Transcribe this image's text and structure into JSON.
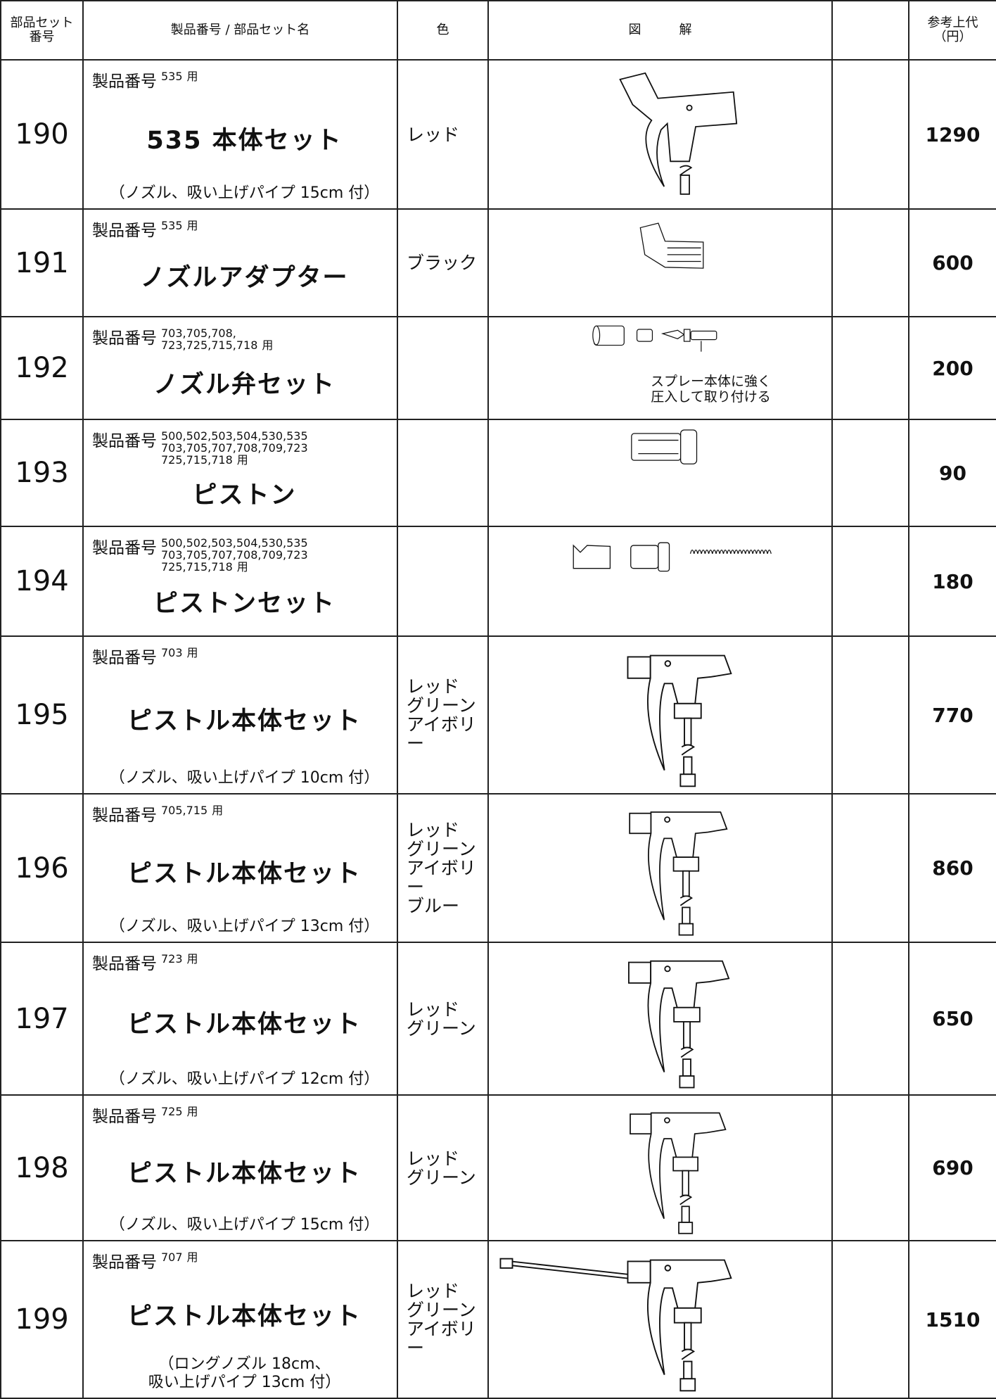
{
  "header": {
    "cells": [
      [
        "部品セット",
        "番号"
      ],
      [
        "製品番号 / 部品セット名"
      ],
      [
        "色"
      ],
      [
        "図　　　解"
      ],
      [],
      [
        "参考上代",
        "（円）"
      ]
    ]
  },
  "product_label": "製品番号",
  "suffix": "用",
  "rows": [
    {
      "number": "190",
      "models": [
        "535"
      ],
      "name": "535 本体セット",
      "note": [
        "（ノズル、吸い上げパイプ 15cm 付）"
      ],
      "colors": [
        "レッド"
      ],
      "price": 1290
    },
    {
      "number": "191",
      "models": [
        "535"
      ],
      "name": "ノズルアダプター",
      "colors": [
        "ブラック"
      ],
      "price": 600
    },
    {
      "number": "192",
      "models": [
        "703,705,708,",
        "723,725,715,718"
      ],
      "name": "ノズル弁セット",
      "diagram_note": [
        "スプレー本体に強く",
        "圧入して取り付ける"
      ],
      "price": 200
    },
    {
      "number": "193",
      "models": [
        "500,502,503,504,530,535",
        "703,705,707,708,709,723",
        "725,715,718"
      ],
      "name": "ピストン",
      "price": 90
    },
    {
      "number": "194",
      "models": [
        "500,502,503,504,530,535",
        "703,705,707,708,709,723",
        "725,715,718"
      ],
      "name": "ピストンセット",
      "price": 180
    },
    {
      "number": "195",
      "models": [
        "703"
      ],
      "name": "ピストル本体セット",
      "note": [
        "（ノズル、吸い上げパイプ 10cm 付）"
      ],
      "colors": [
        "レッド",
        "グリーン",
        "アイボリー"
      ],
      "price": 770
    },
    {
      "number": "196",
      "models": [
        "705,715"
      ],
      "name": "ピストル本体セット",
      "note": [
        "（ノズル、吸い上げパイプ 13cm 付）"
      ],
      "colors": [
        "レッド",
        "グリーン",
        "アイボリー",
        "ブルー"
      ],
      "price": 860
    },
    {
      "number": "197",
      "models": [
        "723"
      ],
      "name": "ピストル本体セット",
      "note": [
        "（ノズル、吸い上げパイプ 12cm 付）"
      ],
      "colors": [
        "レッド",
        "グリーン"
      ],
      "price": 650
    },
    {
      "number": "198",
      "models": [
        "725"
      ],
      "name": "ピストル本体セット",
      "note": [
        "（ノズル、吸い上げパイプ 15cm 付）"
      ],
      "colors": [
        "レッド",
        "グリーン"
      ],
      "price": 690
    },
    {
      "number": "199",
      "models": [
        "707"
      ],
      "name": "ピストル本体セット",
      "note": [
        "（ロングノズル 18cm、",
        "吸い上げパイプ 13cm 付）"
      ],
      "colors": [
        "レッド",
        "グリーン",
        "アイボリー"
      ],
      "price": 1510
    }
  ]
}
